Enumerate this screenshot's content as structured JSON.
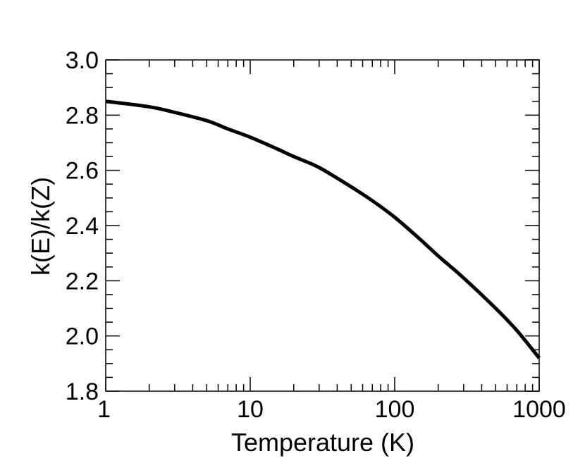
{
  "chart_data": {
    "type": "line",
    "title": "",
    "xlabel": "Temperature (K)",
    "ylabel": "k(E)/k(Z)",
    "xscale": "log",
    "xlim": [
      1,
      1000
    ],
    "ylim": [
      1.8,
      3.0
    ],
    "x_ticks": [
      1,
      10,
      100,
      1000
    ],
    "x_tick_labels": [
      "1",
      "10",
      "100",
      "1000"
    ],
    "y_ticks": [
      1.8,
      2.0,
      2.2,
      2.4,
      2.6,
      2.8,
      3.0
    ],
    "y_tick_labels": [
      "1.8",
      "2.0",
      "2.2",
      "2.4",
      "2.6",
      "2.8",
      "3.0"
    ],
    "grid": false,
    "legend": "none",
    "line_color": "#000000",
    "series": [
      {
        "x": [
          1,
          2,
          3,
          5,
          7,
          10,
          15,
          20,
          30,
          50,
          70,
          100,
          150,
          200,
          300,
          500,
          700,
          1000
        ],
        "y": [
          2.85,
          2.83,
          2.81,
          2.78,
          2.75,
          2.72,
          2.68,
          2.65,
          2.61,
          2.54,
          2.49,
          2.43,
          2.35,
          2.29,
          2.21,
          2.1,
          2.02,
          1.92
        ]
      }
    ]
  }
}
